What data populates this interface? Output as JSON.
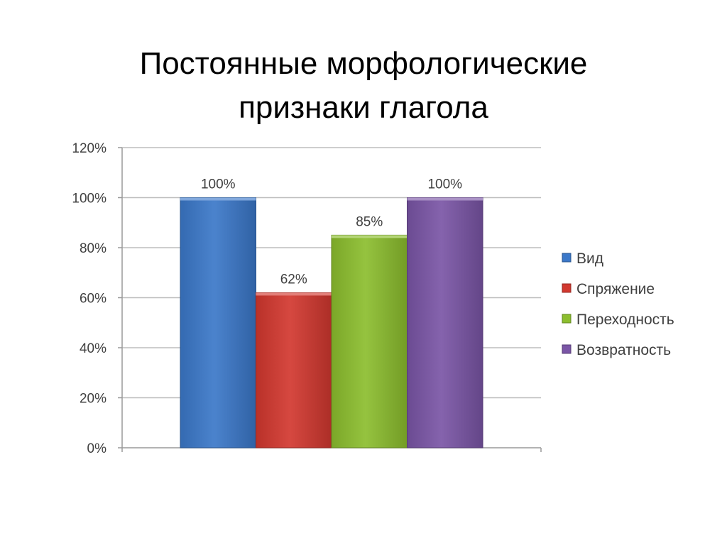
{
  "slide": {
    "title_line1": "Постоянные морфологические",
    "title_line2": "признаки глагола"
  },
  "chart_data": {
    "type": "bar",
    "categories": [
      ""
    ],
    "series": [
      {
        "name": "Вид",
        "values": [
          100
        ],
        "label": "100%",
        "color": "#3B78C9"
      },
      {
        "name": "Спряжение",
        "values": [
          62
        ],
        "label": "62%",
        "color": "#D2382F"
      },
      {
        "name": "Переходность",
        "values": [
          85
        ],
        "label": "85%",
        "color": "#8CBE2E"
      },
      {
        "name": "Возвратность",
        "values": [
          100
        ],
        "label": "100%",
        "color": "#7A55A6"
      }
    ],
    "y_ticks": [
      "0%",
      "20%",
      "40%",
      "60%",
      "80%",
      "100%",
      "120%"
    ],
    "ylim": [
      0,
      120
    ],
    "grid": true,
    "legend_position": "right"
  }
}
